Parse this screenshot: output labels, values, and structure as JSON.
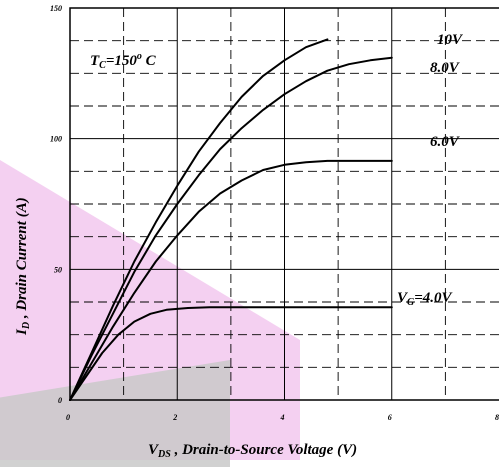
{
  "chart_data": {
    "type": "line",
    "xlabel_main": "V",
    "xlabel_sub": "DS",
    "xlabel_rest": " , Drain-to-Source Voltage (V)",
    "ylabel_main": "I",
    "ylabel_sub": "D",
    "ylabel_rest": " , Drain Current (A)",
    "xlim": [
      0,
      8
    ],
    "ylim": [
      0,
      150
    ],
    "xticks": [
      "0",
      "2",
      "4",
      "6",
      "8"
    ],
    "yticks": [
      "0",
      "50",
      "100",
      "150"
    ],
    "grid": true,
    "annotation_tc_main": "T",
    "annotation_tc_sub": "C",
    "annotation_tc_rest": "=150",
    "annotation_tc_sup": "o",
    "annotation_tc_unit": " C",
    "series": [
      {
        "name": "10V",
        "x": [
          0,
          0.4,
          0.8,
          1.2,
          1.6,
          2.0,
          2.4,
          2.8,
          3.2,
          3.6,
          4.0,
          4.4,
          4.8
        ],
        "y": [
          0,
          18,
          36,
          53,
          68,
          82,
          95,
          106,
          116,
          124,
          130,
          135,
          138
        ]
      },
      {
        "name": "8.0V",
        "x": [
          0,
          0.4,
          0.8,
          1.2,
          1.6,
          2.0,
          2.4,
          2.8,
          3.2,
          3.6,
          4.0,
          4.4,
          4.8,
          5.2,
          5.6,
          6.0
        ],
        "y": [
          0,
          17,
          33,
          49,
          63,
          75,
          86,
          96,
          104,
          111,
          117,
          122,
          126,
          128.5,
          130,
          131
        ]
      },
      {
        "name": "6.0V",
        "x": [
          0,
          0.4,
          0.8,
          1.2,
          1.6,
          2.0,
          2.4,
          2.8,
          3.2,
          3.6,
          4.0,
          4.4,
          4.8,
          6.0
        ],
        "y": [
          0,
          14,
          28,
          41,
          53,
          63,
          72,
          79,
          84,
          88,
          90,
          91,
          91.5,
          91.5
        ]
      },
      {
        "name": "4.0V",
        "x": [
          0,
          0.3,
          0.6,
          0.9,
          1.2,
          1.5,
          1.8,
          2.2,
          2.6,
          3.0,
          6.0
        ],
        "y": [
          0,
          9,
          18,
          25,
          30,
          33,
          34.5,
          35.2,
          35.5,
          35.5,
          35.5
        ]
      }
    ],
    "curve_labels": [
      {
        "main": "10V",
        "sub": "",
        "rest": ""
      },
      {
        "main": "8.0V",
        "sub": "",
        "rest": ""
      },
      {
        "main": "6.0V",
        "sub": "",
        "rest": ""
      },
      {
        "main": "V",
        "sub": "G",
        "rest": "=4.0V"
      }
    ]
  }
}
